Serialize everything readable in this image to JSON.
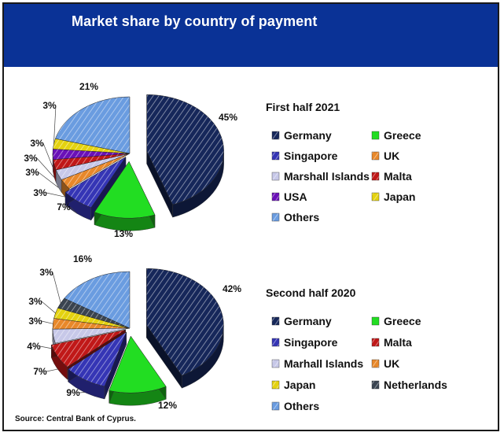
{
  "header": {
    "title": "Market share by country of payment"
  },
  "source": "Source: Central Bank of Cyprus.",
  "colors": {
    "header_bg": "#0a3296",
    "Germany": "#16275a",
    "Greece": "#22dd22",
    "Singapore": "#3535b5",
    "UK": "#e8882a",
    "Marshall Islands": "#c7c8e8",
    "Malta": "#c01818",
    "USA": "#6a10b8",
    "Japan": "#e4d210",
    "Netherlands": "#3a4450",
    "Others": "#6a9ce0"
  },
  "chart_data": [
    {
      "type": "pie",
      "title": "First half  2021",
      "slices": [
        {
          "name": "Germany",
          "value": 45,
          "label": "45%"
        },
        {
          "name": "Greece",
          "value": 13,
          "label": "13%"
        },
        {
          "name": "Singapore",
          "value": 7,
          "label": "7%"
        },
        {
          "name": "UK",
          "value": 3,
          "label": "3%"
        },
        {
          "name": "Marshall Islands",
          "value": 3,
          "label": "3%"
        },
        {
          "name": "Malta",
          "value": 3,
          "label": "3%"
        },
        {
          "name": "USA",
          "value": 3,
          "label": "3%"
        },
        {
          "name": "Japan",
          "value": 3,
          "label": "3%"
        },
        {
          "name": "Others",
          "value": 21,
          "label": "21%"
        }
      ],
      "legend": [
        [
          "Germany",
          "Greece"
        ],
        [
          "Singapore",
          "UK"
        ],
        [
          "Marshall Islands",
          "Malta"
        ],
        [
          "USA",
          "Japan"
        ],
        [
          "Others"
        ]
      ]
    },
    {
      "type": "pie",
      "title": "Second half  2020",
      "slices": [
        {
          "name": "Germany",
          "value": 42,
          "label": "42%"
        },
        {
          "name": "Greece",
          "value": 12,
          "label": "12%"
        },
        {
          "name": "Singapore",
          "value": 9,
          "label": "9%"
        },
        {
          "name": "Malta",
          "value": 7,
          "label": "7%"
        },
        {
          "name": "Marhall Islands",
          "value": 4,
          "label": "4%"
        },
        {
          "name": "UK",
          "value": 3,
          "label": "3%"
        },
        {
          "name": "Japan",
          "value": 3,
          "label": "3%"
        },
        {
          "name": "Netherlands",
          "value": 3,
          "label": "3%"
        },
        {
          "name": "Others",
          "value": 16,
          "label": "16%"
        }
      ],
      "legend": [
        [
          "Germany",
          "Greece"
        ],
        [
          "Singapore",
          "Malta"
        ],
        [
          "Marhall Islands",
          "UK"
        ],
        [
          "Japan",
          "Netherlands"
        ],
        [
          "Others"
        ]
      ]
    }
  ]
}
